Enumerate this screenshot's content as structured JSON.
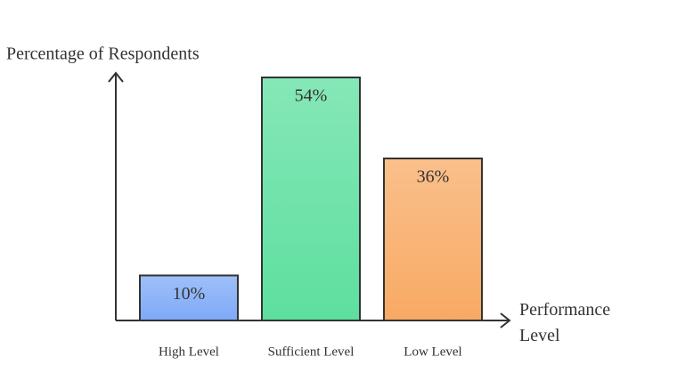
{
  "chart_data": {
    "type": "bar",
    "y_label": "Percentage of Respondents",
    "x_label": "Performance Level",
    "categories": [
      "High Level",
      "Sufficient Level",
      "Low Level"
    ],
    "values": [
      10,
      54,
      36
    ],
    "value_labels": [
      "10%",
      "54%",
      "36%"
    ],
    "colors": [
      "#7eaaf7",
      "#5ddf9f",
      "#f8aa64"
    ]
  }
}
